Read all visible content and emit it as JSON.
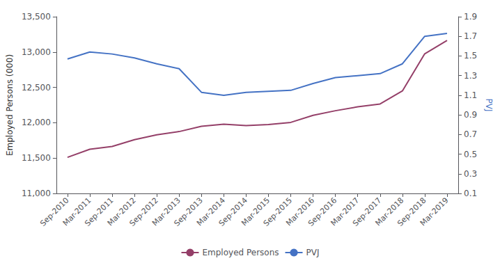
{
  "chart_data": {
    "type": "line",
    "categories": [
      "Sep-2010",
      "Mar-2011",
      "Sep-2011",
      "Mar-2012",
      "Sep-2012",
      "Mar-2013",
      "Sep-2013",
      "Mar-2014",
      "Sep-2014",
      "Mar-2015",
      "Sep-2015",
      "Mar-2016",
      "Sep-2016",
      "Mar-2017",
      "Sep-2017",
      "Mar-2018",
      "Sep-2018",
      "Mar-2019"
    ],
    "series": [
      {
        "name": "Employed Persons",
        "color": "#943f68",
        "axis": "y",
        "values": [
          11510,
          11625,
          11665,
          11760,
          11830,
          11875,
          11950,
          11980,
          11960,
          11975,
          12005,
          12105,
          12170,
          12225,
          12265,
          12450,
          12975,
          13165
        ]
      },
      {
        "name": "PVJ",
        "color": "#4472c4",
        "axis": "y2",
        "values": [
          1.47,
          1.54,
          1.52,
          1.48,
          1.42,
          1.37,
          1.13,
          1.1,
          1.13,
          1.14,
          1.15,
          1.22,
          1.28,
          1.3,
          1.32,
          1.42,
          1.7,
          1.73
        ]
      }
    ],
    "ylabel": "Employed Persons (000)",
    "y2label": "PVJ",
    "ylim": [
      11000,
      13500
    ],
    "yticks": [
      {
        "value": 11000,
        "label": "11,000"
      },
      {
        "value": 11500,
        "label": "11,500"
      },
      {
        "value": 12000,
        "label": "12,000"
      },
      {
        "value": 12500,
        "label": "12,500"
      },
      {
        "value": 13000,
        "label": "13,000"
      },
      {
        "value": 13500,
        "label": "13,500"
      }
    ],
    "y2lim": [
      0.1,
      1.9
    ],
    "y2ticks": [
      0.1,
      0.3,
      0.5,
      0.7,
      0.9,
      1.1,
      1.3,
      1.5,
      1.7,
      1.9
    ],
    "grid": false,
    "legend": "bottom"
  }
}
